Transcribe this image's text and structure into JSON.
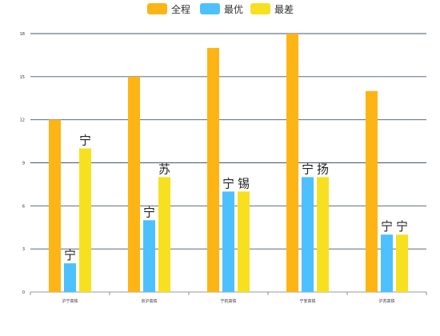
{
  "chart_data": {
    "type": "bar",
    "categories": [
      "沪宁高铁",
      "京沪高铁",
      "宁杭高铁",
      "宁安高铁",
      "沪苏高铁"
    ],
    "series": [
      {
        "name": "全程",
        "color": "#FDB515",
        "values": [
          12,
          15,
          17,
          18,
          14
        ]
      },
      {
        "name": "最优",
        "color": "#4DC0FF",
        "values": [
          2,
          5,
          7,
          8,
          4
        ]
      },
      {
        "name": "最差",
        "color": "#F7E01F",
        "values": [
          10,
          8,
          7,
          8,
          4
        ]
      }
    ],
    "ylim": [
      0,
      18
    ],
    "yticks": [
      0,
      3,
      6,
      9,
      12,
      15,
      18
    ],
    "grid": true,
    "legend": "top-center",
    "data_labels": {
      "1": [
        "宁",
        "宁",
        "宁",
        "宁",
        "宁"
      ],
      "2": [
        "宁",
        "苏",
        "锡",
        "扬",
        "宁"
      ]
    }
  }
}
